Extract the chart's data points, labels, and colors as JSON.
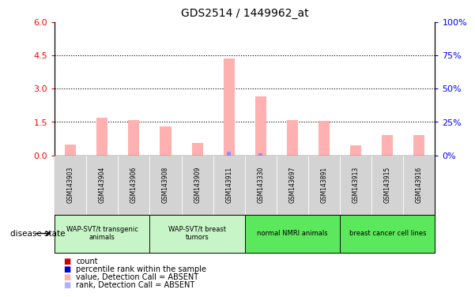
{
  "title": "GDS2514 / 1449962_at",
  "samples": [
    "GSM143903",
    "GSM143904",
    "GSM143906",
    "GSM143908",
    "GSM143909",
    "GSM143911",
    "GSM143330",
    "GSM143697",
    "GSM143891",
    "GSM143913",
    "GSM143915",
    "GSM143916"
  ],
  "pink_values": [
    0.5,
    1.7,
    1.6,
    1.3,
    0.55,
    4.35,
    2.65,
    1.6,
    1.55,
    0.45,
    0.9,
    0.9
  ],
  "blue_values": [
    0.0,
    0.0,
    0.0,
    0.0,
    0.0,
    0.15,
    0.1,
    0.0,
    0.0,
    0.0,
    0.0,
    0.0
  ],
  "ylim": [
    0,
    6
  ],
  "yticks_left": [
    0,
    1.5,
    3,
    4.5,
    6
  ],
  "yticks_right": [
    0,
    25,
    50,
    75,
    100
  ],
  "groups": [
    {
      "label": "WAP-SVT/t transgenic\nanimals",
      "start": 0,
      "end": 3,
      "color": "#c8f5c8"
    },
    {
      "label": "WAP-SVT/t breast\ntumors",
      "start": 3,
      "end": 6,
      "color": "#c8f5c8"
    },
    {
      "label": "normal NMRI animals",
      "start": 6,
      "end": 9,
      "color": "#5ce85c"
    },
    {
      "label": "breast cancer cell lines",
      "start": 9,
      "end": 12,
      "color": "#5ce85c"
    }
  ],
  "disease_state_label": "disease state",
  "bar_width": 0.35,
  "pink_color": "#ffb0b0",
  "blue_color": "#9090ff",
  "bg_color": "#ffffff",
  "tick_label_bg": "#d3d3d3",
  "legend_items": [
    {
      "color": "#cc0000",
      "label": "count"
    },
    {
      "color": "#0000cc",
      "label": "percentile rank within the sample"
    },
    {
      "color": "#ffb0b0",
      "label": "value, Detection Call = ABSENT"
    },
    {
      "color": "#b0b0ff",
      "label": "rank, Detection Call = ABSENT"
    }
  ]
}
